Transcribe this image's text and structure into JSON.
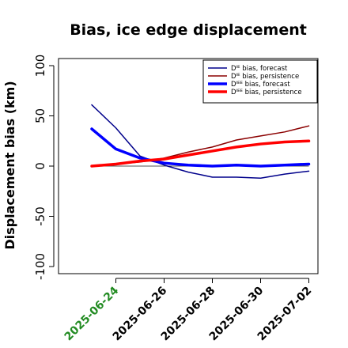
{
  "chart_data": {
    "type": "line",
    "title": "Bias, ice edge displacement",
    "ylabel": "Displacement bias (km)",
    "xlabel": "",
    "ylim": [
      -105,
      108
    ],
    "yticks": [
      -100,
      -50,
      0,
      50,
      100
    ],
    "x_tick_labels": [
      "2025-06-24",
      "2025-06-26",
      "2025-06-28",
      "2025-06-30",
      "2025-07-02"
    ],
    "highlighted_tick_label": "2025-06-24",
    "highlight_color": "#228B22",
    "zero_line": true,
    "legend_position": "top-right",
    "x": [
      "2025-06-23",
      "2025-06-24",
      "2025-06-25",
      "2025-06-26",
      "2025-06-27",
      "2025-06-28",
      "2025-06-29",
      "2025-06-30",
      "2025-07-01",
      "2025-07-02"
    ],
    "series": [
      {
        "name": "Dᴵᴱ bias, forecast",
        "color": "#00008B",
        "width": 1.5,
        "values": [
          61,
          38,
          10,
          1,
          -6,
          -11,
          -11,
          -12,
          -8,
          -5
        ]
      },
      {
        "name": "Dᴵᴱ bias, persistence",
        "color": "#8B0000",
        "width": 1.5,
        "values": [
          0,
          2,
          4,
          8,
          14,
          19,
          26,
          30,
          34,
          40
        ]
      },
      {
        "name": "Dᴵᴱᴱ bias, forecast",
        "color": "#0000FF",
        "width": 3.5,
        "values": [
          37,
          17,
          8,
          3,
          1,
          0,
          1,
          0,
          1,
          2
        ]
      },
      {
        "name": "Dᴵᴱᴱ bias, persistence",
        "color": "#FF0000",
        "width": 3.5,
        "values": [
          0,
          2,
          5,
          7,
          11,
          15,
          19,
          22,
          24,
          25
        ]
      }
    ]
  }
}
